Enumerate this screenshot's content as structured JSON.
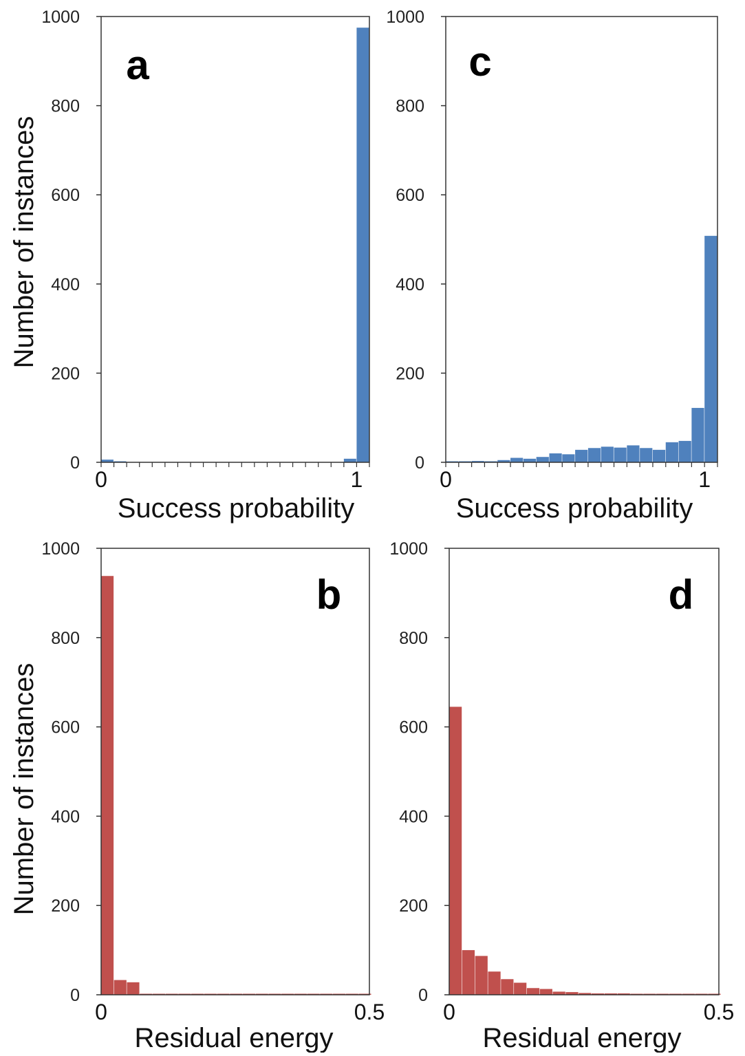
{
  "figure": {
    "ylabel_top": "Number of instances",
    "ylabel_bottom": "Number of instances"
  },
  "chart_data": [
    {
      "id": "a",
      "panel_label": "a",
      "type": "bar",
      "xlabel": "Success probability",
      "ylabel": "Number of instances",
      "xlim": [
        0,
        1.05
      ],
      "ylim": [
        0,
        1000
      ],
      "yticks": [
        0,
        200,
        400,
        600,
        800,
        1000
      ],
      "xticks": [
        {
          "value": 0,
          "label": "0"
        },
        {
          "value": 1,
          "label": "1"
        }
      ],
      "minor_xtick_step": 0.05,
      "bin_width": 0.05,
      "color": "#4f81bd",
      "bins": [
        0,
        0.05,
        0.1,
        0.15,
        0.2,
        0.25,
        0.3,
        0.35,
        0.4,
        0.45,
        0.5,
        0.55,
        0.6,
        0.65,
        0.7,
        0.75,
        0.8,
        0.85,
        0.9,
        0.95,
        1.0
      ],
      "values": [
        6,
        1,
        0,
        0,
        0,
        0,
        0,
        0,
        0,
        0,
        0,
        0,
        0,
        0,
        0,
        0,
        0,
        0,
        0,
        8,
        975
      ],
      "grid": false
    },
    {
      "id": "c",
      "panel_label": "c",
      "type": "bar",
      "xlabel": "Success probability",
      "ylabel": "",
      "xlim": [
        0,
        1.05
      ],
      "ylim": [
        0,
        1000
      ],
      "yticks": [
        0,
        200,
        400,
        600,
        800,
        1000
      ],
      "xticks": [
        {
          "value": 0,
          "label": "0"
        },
        {
          "value": 1,
          "label": "1"
        }
      ],
      "minor_xtick_step": 0.05,
      "bin_width": 0.05,
      "color": "#4f81bd",
      "bins": [
        0,
        0.05,
        0.1,
        0.15,
        0.2,
        0.25,
        0.3,
        0.35,
        0.4,
        0.45,
        0.5,
        0.55,
        0.6,
        0.65,
        0.7,
        0.75,
        0.8,
        0.85,
        0.9,
        0.95,
        1.0
      ],
      "values": [
        2,
        2,
        3,
        2,
        5,
        10,
        8,
        12,
        20,
        18,
        28,
        32,
        35,
        33,
        38,
        32,
        28,
        45,
        48,
        122,
        508
      ],
      "grid": false
    },
    {
      "id": "b",
      "panel_label": "b",
      "type": "bar",
      "xlabel": "Residual energy",
      "ylabel": "Number of instances",
      "xlim": [
        0,
        0.5
      ],
      "ylim": [
        0,
        1000
      ],
      "yticks": [
        0,
        200,
        400,
        600,
        800,
        1000
      ],
      "xticks": [
        {
          "value": 0,
          "label": "0"
        },
        {
          "value": 0.5,
          "label": "0.5"
        }
      ],
      "minor_xtick_step": null,
      "bin_width": 0.024,
      "color": "#c0504d",
      "bins": [
        0,
        0.024,
        0.048,
        0.072,
        0.096,
        0.12,
        0.144,
        0.168,
        0.192,
        0.216,
        0.24,
        0.264,
        0.288,
        0.312,
        0.336,
        0.36,
        0.384,
        0.408,
        0.432,
        0.456,
        0.48
      ],
      "values": [
        938,
        33,
        28,
        1,
        1,
        1,
        1,
        1,
        1,
        1,
        1,
        1,
        1,
        1,
        1,
        1,
        1,
        1,
        1,
        1,
        1
      ],
      "grid": false
    },
    {
      "id": "d",
      "panel_label": "d",
      "type": "bar",
      "xlabel": "Residual energy",
      "ylabel": "",
      "xlim": [
        0,
        0.5
      ],
      "ylim": [
        0,
        1000
      ],
      "yticks": [
        0,
        200,
        400,
        600,
        800,
        1000
      ],
      "xticks": [
        {
          "value": 0,
          "label": "0"
        },
        {
          "value": 0.5,
          "label": "0.5"
        }
      ],
      "minor_xtick_step": null,
      "bin_width": 0.024,
      "color": "#c0504d",
      "bins": [
        0,
        0.024,
        0.048,
        0.072,
        0.096,
        0.12,
        0.144,
        0.168,
        0.192,
        0.216,
        0.24,
        0.264,
        0.288,
        0.312,
        0.336,
        0.36,
        0.384,
        0.408,
        0.432,
        0.456,
        0.48
      ],
      "values": [
        645,
        100,
        87,
        52,
        35,
        27,
        15,
        13,
        7,
        6,
        4,
        3,
        3,
        3,
        2,
        2,
        2,
        2,
        2,
        1,
        1
      ],
      "grid": false
    }
  ]
}
